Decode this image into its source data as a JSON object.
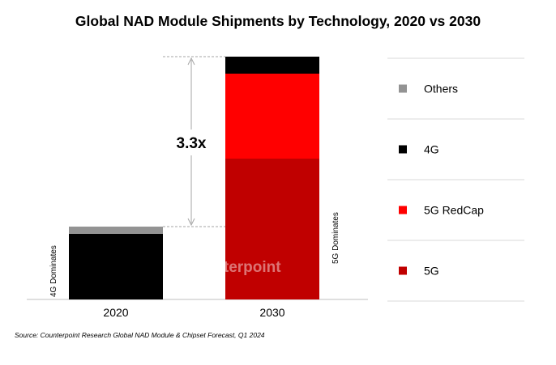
{
  "chart_data": {
    "type": "bar",
    "stacked": true,
    "title": "Global NAD Module Shipments by Technology, 2020 vs 2030",
    "categories": [
      "2020",
      "2030"
    ],
    "series": [
      {
        "name": "5G",
        "values": [
          0,
          0.58
        ],
        "color": "#c00000"
      },
      {
        "name": "5G RedCap",
        "values": [
          0,
          0.35
        ],
        "color": "#ff0000"
      },
      {
        "name": "4G",
        "values": [
          0.27,
          0.07
        ],
        "color": "#000000"
      },
      {
        "name": "Others",
        "values": [
          0.03,
          0
        ],
        "color": "#939393"
      }
    ],
    "legend_order": [
      "Others",
      "4G",
      "5G RedCap",
      "5G"
    ],
    "legend_position": "right",
    "growth_label": "3.3x",
    "bar_annotations": [
      "4G Dominates",
      "5G Dominates"
    ],
    "watermark": "Counterpoint",
    "source": "Source: Counterpoint Research Global NAD Module & Chipset Forecast, Q1 2024"
  }
}
